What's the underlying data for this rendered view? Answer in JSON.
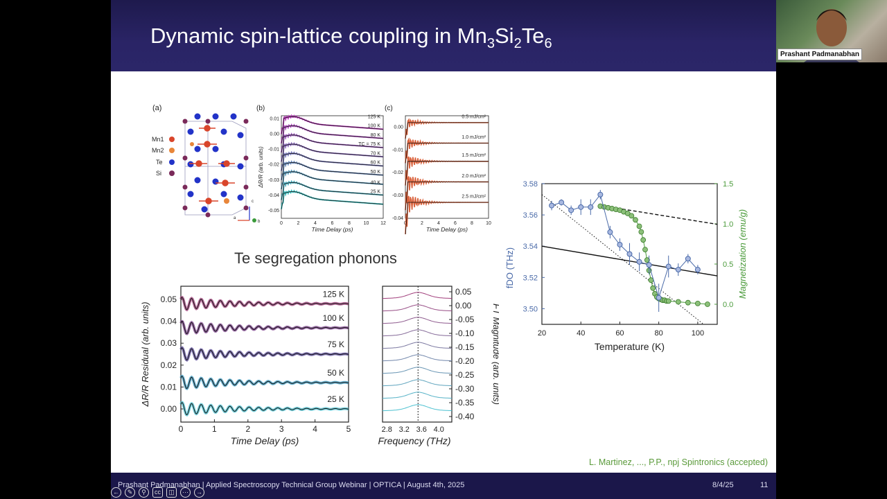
{
  "slide": {
    "title_main": "Dynamic spin-lattice coupling in Mn",
    "title_sub1": "3",
    "title_mid": "Si",
    "title_sub2": "2",
    "title_end": "Te",
    "title_sub3": "6",
    "section_title": "Te segregation phonons",
    "citation": "L. Martinez, ..., P.P., npj Spintronics (accepted)",
    "footer_left": "Prashant Padmanabhan | Applied Spectroscopy Technical Group Webinar | OPTICA | August 4th, 2025",
    "footer_date": "8/4/25",
    "footer_page": "11"
  },
  "presenter": {
    "name": "Prashant Padmanabhan"
  },
  "panel_a": {
    "label": "(a)",
    "legend": [
      "Mn1",
      "Mn2",
      "Te",
      "Si"
    ],
    "legend_colors": [
      "#d9452b",
      "#e8863a",
      "#2233c8",
      "#7a2a5a"
    ],
    "axis_labels": [
      "a",
      "b",
      "c"
    ]
  },
  "chart_data": [
    {
      "id": "panel-b",
      "type": "line",
      "label": "(b)",
      "xlabel": "Time Delay (ps)",
      "ylabel": "ΔR/R (arb. units)",
      "xlim": [
        0,
        12
      ],
      "ylim": [
        -0.055,
        0.012
      ],
      "xticks": [
        "0",
        "2",
        "4",
        "6",
        "8",
        "10",
        "12"
      ],
      "yticks": [
        "0.01",
        "0.00",
        "-0.01",
        "-0.02",
        "-0.03",
        "-0.04",
        "-0.05"
      ],
      "series_labels": [
        "125 K",
        "100 K",
        "80 K",
        "TC = 75 K",
        "70 K",
        "60 K",
        "50 K",
        "40 K",
        "25 K"
      ],
      "offsets": [
        0.008,
        0.002,
        -0.004,
        -0.01,
        -0.016,
        -0.022,
        -0.028,
        -0.035,
        -0.041
      ]
    },
    {
      "id": "panel-c",
      "type": "line",
      "label": "(c)",
      "xlabel": "Time Delay (ps)",
      "xlim": [
        0,
        10
      ],
      "ylim": [
        -0.04,
        0.005
      ],
      "xticks": [
        "0",
        "2",
        "4",
        "6",
        "8",
        "10"
      ],
      "yticks": [
        "0.00",
        "-0.01",
        "-0.02",
        "-0.03",
        "-0.04"
      ],
      "series_labels": [
        "0.5 mJ/cm²",
        "1.0 mJ/cm²",
        "1.5 mJ/cm²",
        "2.0 mJ/cm²",
        "2.5 mJ/cm²"
      ],
      "offsets": [
        0.001,
        -0.008,
        -0.016,
        -0.025,
        -0.034
      ]
    },
    {
      "id": "residual-chart",
      "type": "line",
      "xlabel": "Time Delay (ps)",
      "ylabel": "ΔR/R Residual (arb. units)",
      "xlim": [
        0,
        5
      ],
      "ylim": [
        -0.006,
        0.056
      ],
      "xticks": [
        "0",
        "1",
        "2",
        "3",
        "4",
        "5"
      ],
      "yticks": [
        "0.05",
        "0.04",
        "0.03",
        "0.02",
        "0.01",
        "0.00"
      ],
      "series": [
        {
          "name": "125 K",
          "offset": 0.048,
          "color": "#a03c7a"
        },
        {
          "name": "100 K",
          "offset": 0.037,
          "color": "#7a3c8a"
        },
        {
          "name": "75 K",
          "offset": 0.025,
          "color": "#5a4a9a"
        },
        {
          "name": "50 K",
          "offset": 0.012,
          "color": "#3a9ac0"
        },
        {
          "name": "25 K",
          "offset": 0.0,
          "color": "#4ac0d0"
        }
      ]
    },
    {
      "id": "ft-chart",
      "type": "line",
      "xlabel": "Frequency (THz)",
      "ylabel": "FT Magnitude (arb. units)",
      "xlim": [
        2.7,
        4.3
      ],
      "ylim": [
        -0.42,
        0.07
      ],
      "xticks": [
        "2.8",
        "3.2",
        "3.6",
        "4.0"
      ],
      "xtick_values": [
        2.8,
        3.2,
        3.6,
        4.0
      ],
      "yticks": [
        "0.05",
        "0.00",
        "-0.05",
        "-0.10",
        "-0.15",
        "-0.20",
        "-0.25",
        "-0.30",
        "-0.35",
        "-0.40"
      ],
      "peak": 3.52
    },
    {
      "id": "freq-mag-chart",
      "type": "scatter",
      "xlabel": "Temperature (K)",
      "ylabel_left": "fDO (THz)",
      "ylabel_right": "Magnetization (emu/g)",
      "xlim": [
        20,
        110
      ],
      "ylim_left": [
        3.49,
        3.58
      ],
      "ylim_right": [
        -0.25,
        1.5
      ],
      "xticks": [
        "20",
        "40",
        "60",
        "80",
        "100"
      ],
      "yticks_left": [
        "3.58",
        "3.56",
        "3.54",
        "3.52",
        "3.50"
      ],
      "yticks_right": [
        "1.5",
        "1.0",
        "0.5",
        "0.0"
      ],
      "freq_series": {
        "name": "fDO",
        "x": [
          25,
          30,
          35,
          40,
          45,
          50,
          55,
          60,
          65,
          70,
          75,
          80,
          85,
          90,
          95,
          100
        ],
        "y": [
          3.566,
          3.568,
          3.563,
          3.565,
          3.565,
          3.573,
          3.549,
          3.541,
          3.535,
          3.53,
          3.528,
          3.507,
          3.527,
          3.525,
          3.532,
          3.525
        ],
        "err": [
          0.003,
          0.002,
          0.003,
          0.005,
          0.005,
          0.003,
          0.004,
          0.004,
          0.007,
          0.006,
          0.006,
          0.009,
          0.007,
          0.004,
          0.003,
          0.003
        ]
      },
      "magnetization_series": {
        "name": "Magnetization",
        "x": [
          50,
          52,
          54,
          56,
          58,
          60,
          62,
          64,
          66,
          68,
          70,
          71,
          72,
          73,
          74,
          75,
          76,
          77,
          78,
          79,
          80,
          81,
          82,
          83,
          84,
          85,
          90,
          95,
          100,
          105
        ],
        "y": [
          1.22,
          1.21,
          1.2,
          1.19,
          1.18,
          1.17,
          1.15,
          1.13,
          1.1,
          1.05,
          0.97,
          0.9,
          0.8,
          0.68,
          0.55,
          0.42,
          0.3,
          0.2,
          0.13,
          0.09,
          0.07,
          0.06,
          0.05,
          0.05,
          0.04,
          0.04,
          0.03,
          0.02,
          0.01,
          0.0
        ]
      }
    }
  ]
}
